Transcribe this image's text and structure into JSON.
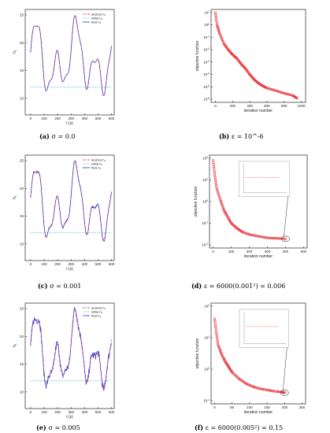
{
  "panels": [
    {
      "id": "a",
      "caption": "(a)  σ = 0.0",
      "chart_data": {
        "type": "line",
        "ylabel": "h_1",
        "xlabel": "t (s)",
        "xlim": [
          -40,
          620
        ],
        "ylim": [
          7,
          26
        ],
        "xticks": [
          0,
          100,
          200,
          300,
          400,
          500,
          600
        ],
        "yticks": [
          10,
          15,
          20,
          25
        ],
        "legend": [
          "desired h_1",
          "initial h_1",
          "final h_1"
        ],
        "legend_position": "top-right",
        "initial_value": 12,
        "noise": 0
      }
    },
    {
      "id": "b",
      "caption": "(b)  ε = 10^-6",
      "chart_data": {
        "type": "scatter",
        "ylabel": "objective function",
        "xlabel": "iteration number",
        "xlim": [
          -50,
          1050
        ],
        "xticks": [
          0,
          200,
          400,
          600,
          800,
          1000
        ],
        "yscale": "log",
        "ytick_labels": [
          "10^1",
          "10^0",
          "10^-1",
          "10^-2",
          "10^-3",
          "10^-4",
          "10^-5",
          "10^-6"
        ],
        "x": [
          0,
          20,
          50,
          100,
          150,
          200,
          250,
          300,
          350,
          400,
          450,
          500,
          550,
          600,
          700,
          800,
          900,
          950
        ],
        "y": [
          10,
          1,
          0.2,
          0.03,
          0.01,
          0.004,
          0.002,
          0.0007,
          0.0003,
          0.0001,
          4e-05,
          2e-05,
          1.2e-05,
          8e-06,
          5e-06,
          3e-06,
          2e-06,
          1.2e-06
        ]
      }
    },
    {
      "id": "c",
      "caption": "(c)  σ = 0.001",
      "chart_data": {
        "type": "line",
        "ylabel": "h_1",
        "xlabel": "t (s)",
        "xlim": [
          -40,
          620
        ],
        "ylim": [
          7,
          26
        ],
        "xticks": [
          0,
          100,
          200,
          300,
          400,
          500,
          600
        ],
        "yticks": [
          10,
          15,
          20,
          25
        ],
        "legend": [
          "desired h_1",
          "initial h_1",
          "final h_1"
        ],
        "legend_position": "top-right",
        "initial_value": 12,
        "noise": 0.25
      }
    },
    {
      "id": "d",
      "caption": "(d)  ε = 6000(0.001²) = 0.006",
      "chart_data": {
        "type": "scatter",
        "ylabel": "objective function",
        "xlabel": "iteration number",
        "xlim": [
          -20,
          520
        ],
        "xticks": [
          0,
          100,
          200,
          300,
          400,
          500
        ],
        "yscale": "log",
        "ytick_labels": [
          "10^2",
          "10^1",
          "10^0",
          "10^-1",
          "10^-2"
        ],
        "x": [
          0,
          10,
          20,
          40,
          60,
          80,
          100,
          130,
          160,
          200,
          250,
          300,
          350,
          400
        ],
        "y": [
          80,
          15,
          4,
          1.2,
          0.4,
          0.2,
          0.1,
          0.06,
          0.04,
          0.03,
          0.025,
          0.021,
          0.02,
          0.019
        ],
        "inset": true
      }
    },
    {
      "id": "e",
      "caption": "(e)  σ = 0.005",
      "chart_data": {
        "type": "line",
        "ylabel": "h_1",
        "xlabel": "t (s)",
        "xlim": [
          -40,
          620
        ],
        "ylim": [
          7,
          26
        ],
        "xticks": [
          0,
          100,
          200,
          300,
          400,
          500,
          600
        ],
        "yticks": [
          10,
          15,
          20,
          25
        ],
        "legend": [
          "desired h_1",
          "initial h_1",
          "final h_1"
        ],
        "legend_position": "top-right",
        "initial_value": 12,
        "noise": 0.8
      }
    },
    {
      "id": "f",
      "caption": "(f)  ε = 6000(0.005²) = 0.15",
      "chart_data": {
        "type": "scatter",
        "ylabel": "objective function",
        "xlabel": "iteration number",
        "xlim": [
          -10,
          260
        ],
        "xticks": [
          0,
          50,
          100,
          150,
          200,
          250
        ],
        "yscale": "log",
        "ytick_labels": [
          "10^2",
          "10^1",
          "10^0",
          "10^-1"
        ],
        "x": [
          0,
          5,
          10,
          20,
          30,
          40,
          50,
          70,
          90,
          110,
          130,
          150,
          170,
          190,
          200
        ],
        "y": [
          40,
          15,
          6,
          3,
          1.8,
          1.2,
          0.8,
          0.5,
          0.35,
          0.28,
          0.24,
          0.22,
          0.2,
          0.19,
          0.18
        ],
        "inset": true
      }
    }
  ],
  "colors": {
    "desired": "#e0323c",
    "initial": "#5fd3d3",
    "final": "#3333cc",
    "marker": "#e8333a",
    "frame": "#000000"
  }
}
